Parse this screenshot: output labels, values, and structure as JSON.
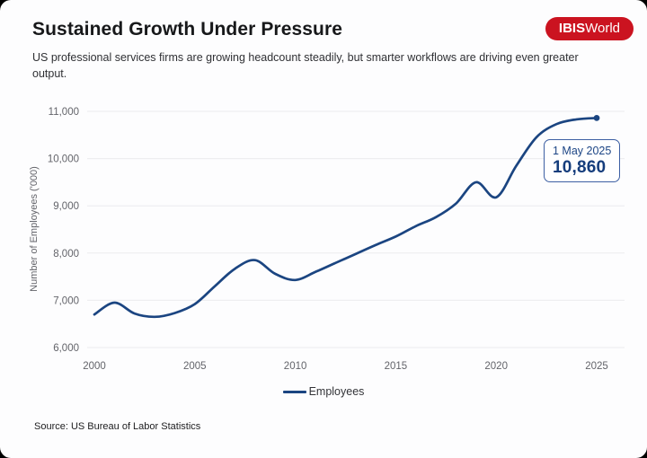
{
  "header": {
    "title": "Sustained Growth Under Pressure",
    "subtitle": "US professional services firms are growing headcount steadily, but smarter workflows are driving even greater output.",
    "logo_bold": "IBIS",
    "logo_regular": "World"
  },
  "chart_data": {
    "type": "line",
    "title": "",
    "xlabel": "",
    "ylabel": "Number of Employees ('000)",
    "xlim": [
      2000,
      2025
    ],
    "ylim": [
      6000,
      11000
    ],
    "x_ticks": [
      2000,
      2005,
      2010,
      2015,
      2020,
      2025
    ],
    "y_ticks": [
      6000,
      7000,
      8000,
      9000,
      10000,
      11000
    ],
    "grid": "horizontal",
    "legend_position": "bottom",
    "series": [
      {
        "name": "Employees",
        "color": "#1b4581",
        "x": [
          2000,
          2001,
          2002,
          2003,
          2004,
          2005,
          2006,
          2007,
          2008,
          2009,
          2010,
          2011,
          2012,
          2013,
          2014,
          2015,
          2016,
          2017,
          2018,
          2019,
          2020,
          2021,
          2022,
          2023,
          2024,
          2025
        ],
        "values": [
          6700,
          6950,
          6720,
          6650,
          6730,
          6920,
          7300,
          7670,
          7850,
          7560,
          7430,
          7600,
          7790,
          7980,
          8170,
          8350,
          8570,
          8760,
          9050,
          9500,
          9180,
          9850,
          10450,
          10730,
          10830,
          10860
        ]
      }
    ],
    "end_marker": true,
    "annotation": {
      "date": "1 May 2025",
      "value": "10,860"
    }
  },
  "footer": {
    "source": "Source: US Bureau of Labor Statistics"
  },
  "colors": {
    "accent_navy": "#1b4581",
    "logo_red": "#cb1320",
    "grid": "#ebebee",
    "axis_text": "#63646a",
    "callout_border": "#3d5fa3"
  }
}
